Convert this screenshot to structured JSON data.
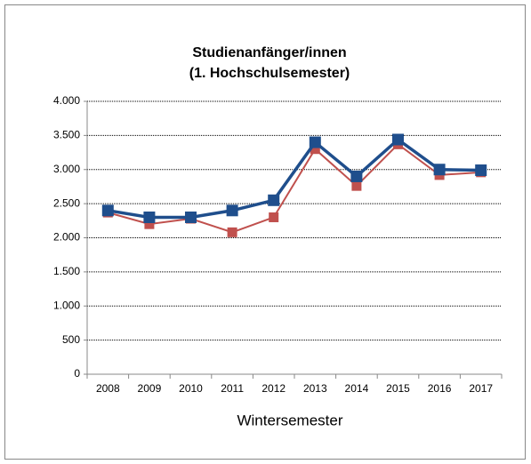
{
  "chart_data": {
    "type": "line",
    "title": [
      "Studienanfänger/innen",
      "(1. Hochschulsemester)"
    ],
    "x_label": "Wintersemester",
    "categories": [
      "2008",
      "2009",
      "2010",
      "2011",
      "2012",
      "2013",
      "2014",
      "2015",
      "2016",
      "2017"
    ],
    "series": [
      {
        "color": "#c0504d",
        "values": [
          2370,
          2200,
          2280,
          2080,
          2300,
          3300,
          2760,
          3370,
          2920,
          2960
        ]
      },
      {
        "color": "#1f4e8c",
        "values": [
          2400,
          2300,
          2300,
          2400,
          2550,
          3400,
          2900,
          3440,
          3000,
          2990
        ]
      }
    ],
    "ylim": [
      0,
      4000
    ],
    "yticks": [
      0,
      500,
      {
        "value": 1000,
        "label": "1.000"
      },
      {
        "value": 1500,
        "label": "1.500"
      },
      {
        "value": 2000,
        "label": "2.000"
      },
      {
        "value": 2500,
        "label": "2.500"
      },
      {
        "value": 3000,
        "label": "3.000"
      },
      {
        "value": 3500,
        "label": "3.500"
      },
      {
        "value": 4000,
        "label": "4.000"
      }
    ],
    "grid": true
  }
}
